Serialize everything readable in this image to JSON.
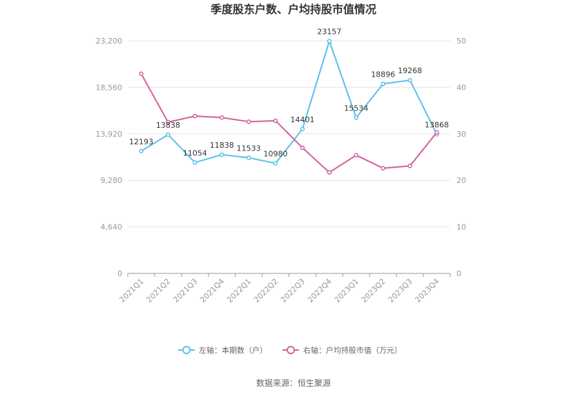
{
  "chart_data": {
    "type": "line",
    "title": "季度股东户数、户均持股市值情况",
    "categories": [
      "2021Q1",
      "2021Q2",
      "2021Q3",
      "2021Q4",
      "2022Q1",
      "2022Q2",
      "2022Q3",
      "2022Q4",
      "2023Q1",
      "2023Q2",
      "2023Q3",
      "2023Q4"
    ],
    "left_axis": {
      "ticks": [
        "23,200",
        "18,560",
        "13,920",
        "9,280",
        "4,640",
        "0"
      ],
      "ylim": [
        0,
        23200
      ]
    },
    "right_axis": {
      "ticks": [
        "50",
        "40",
        "30",
        "20",
        "10",
        "0"
      ],
      "ylim": [
        0,
        50
      ]
    },
    "series": [
      {
        "name": "左轴：本期数（户）",
        "axis": "left",
        "color": "#5bc0eb",
        "values": [
          12193,
          13838,
          11054,
          11838,
          11533,
          10980,
          14401,
          23157,
          15534,
          18896,
          19268,
          13868
        ],
        "data_labels": [
          "12193",
          "13838",
          "11054",
          "11838",
          "11533",
          "10980",
          "14401",
          "23157",
          "15534",
          "18896",
          "19268",
          "13868"
        ]
      },
      {
        "name": "右轴：户均持股市值（万元）",
        "axis": "right",
        "color": "#d4609e",
        "values": [
          42.9,
          32.5,
          33.8,
          33.5,
          32.6,
          32.8,
          27.0,
          21.7,
          25.4,
          22.6,
          23.1,
          30.3
        ]
      }
    ],
    "grid": true,
    "legend_position": "bottom"
  },
  "footer": {
    "source": "数据来源：恒生聚源"
  }
}
